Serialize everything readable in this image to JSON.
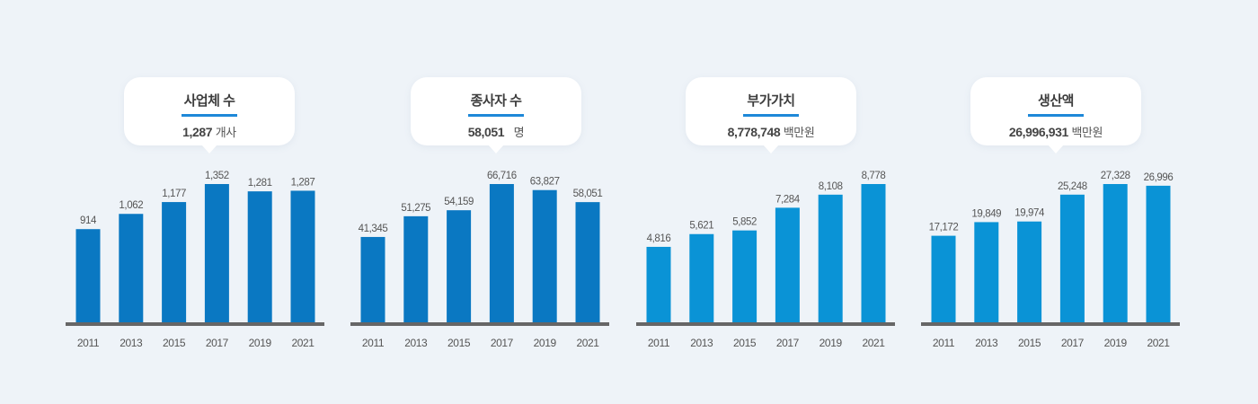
{
  "colors": {
    "background": "#eef3f8",
    "bar_dark": "#0a78c2",
    "bar_light": "#0a93d6",
    "axis": "#666666",
    "accent_line": "#1e88d8"
  },
  "panels": [
    {
      "title": "사업체 수",
      "value": "1,287",
      "unit": "개사",
      "value_labels": [
        "914",
        "1,062",
        "1,177",
        "1,352",
        "1,281",
        "1,287"
      ]
    },
    {
      "title": "종사자 수",
      "value": "58,051",
      "unit": "명",
      "value_labels": [
        "41,345",
        "51,275",
        "54,159",
        "66,716",
        "63,827",
        "58,051"
      ]
    },
    {
      "title": "부가가치",
      "value": "8,778,748",
      "unit": "백만원",
      "value_labels": [
        "4,816",
        "5,621",
        "5,852",
        "7,284",
        "8,108",
        "8,778"
      ]
    },
    {
      "title": "생산액",
      "value": "26,996,931",
      "unit": "백만원",
      "value_labels": [
        "17,172",
        "19,849",
        "19,974",
        "25,248",
        "27,328",
        "26,996"
      ]
    }
  ],
  "chart_data": [
    {
      "type": "bar",
      "categories": [
        "2011",
        "2013",
        "2015",
        "2017",
        "2019",
        "2021"
      ],
      "values": [
        914,
        1062,
        1177,
        1352,
        1281,
        1287
      ],
      "title": "사업체 수",
      "unit": "개사",
      "color": "#0a78c2",
      "grid": false
    },
    {
      "type": "bar",
      "categories": [
        "2011",
        "2013",
        "2015",
        "2017",
        "2019",
        "2021"
      ],
      "values": [
        41345,
        51275,
        54159,
        66716,
        63827,
        58051
      ],
      "title": "종사자 수",
      "unit": "명",
      "color": "#0a78c2",
      "grid": false
    },
    {
      "type": "bar",
      "categories": [
        "2011",
        "2013",
        "2015",
        "2017",
        "2019",
        "2021"
      ],
      "values": [
        4816,
        5621,
        5852,
        7284,
        8108,
        8778
      ],
      "title": "부가가치",
      "unit": "백만원",
      "color": "#0a93d6",
      "grid": false
    },
    {
      "type": "bar",
      "categories": [
        "2011",
        "2013",
        "2015",
        "2017",
        "2019",
        "2021"
      ],
      "values": [
        17172,
        19849,
        19974,
        25248,
        27328,
        26996
      ],
      "title": "생산액",
      "unit": "백만원",
      "color": "#0a93d6",
      "grid": false
    }
  ]
}
